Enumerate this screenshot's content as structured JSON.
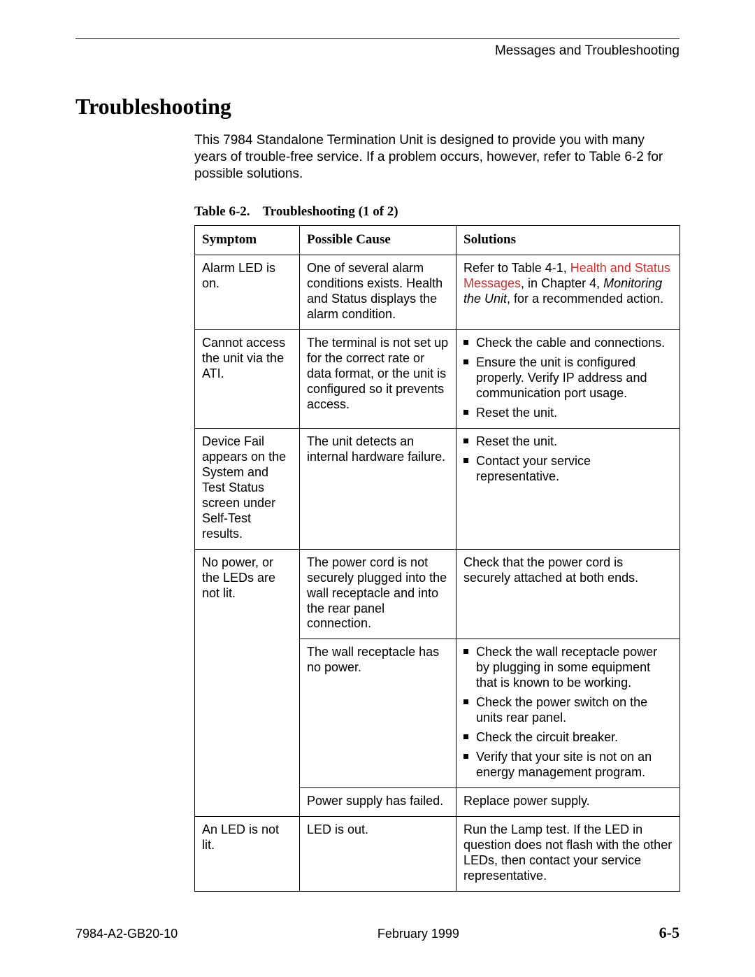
{
  "header": {
    "running_head": "Messages and Troubleshooting"
  },
  "title": "Troubleshooting",
  "intro": "This 7984 Standalone Termination Unit is designed to provide you with many years of trouble-free service. If a problem occurs, however, refer to Table 6-2 for possible solutions.",
  "table": {
    "caption_prefix": "Table 6-2.",
    "caption_title": "Troubleshooting (1 of 2)",
    "columns": [
      "Symptom",
      "Possible Cause",
      "Solutions"
    ],
    "rows": {
      "r1": {
        "symptom": "Alarm LED is on.",
        "cause": "One of several alarm conditions exists. Health and Status displays the alarm condition.",
        "sol_pre": "Refer to Table 4-1, ",
        "sol_link": "Health and Status Messages",
        "sol_mid": ", in Chapter 4, ",
        "sol_ital": "Monitoring the Unit",
        "sol_post": ", for a recommended action."
      },
      "r2": {
        "symptom": "Cannot access the unit via the ATI.",
        "cause": "The terminal is not set up for the correct rate or data format, or the unit is configured so it prevents access.",
        "sol": {
          "i1": "Check the cable and connections.",
          "i2": "Ensure the unit is configured properly. Verify IP address and communication port usage.",
          "i3": "Reset the unit."
        }
      },
      "r3": {
        "symptom": "Device Fail appears on the System and Test Status screen under Self-Test results.",
        "cause": "The unit detects an internal hardware failure.",
        "sol": {
          "i1": "Reset the unit.",
          "i2": "Contact your service representative."
        }
      },
      "r4": {
        "symptom": "No power, or the LEDs are not lit.",
        "cause": "The power cord is not securely plugged into the wall receptacle and into the rear panel connection.",
        "sol": "Check that the power cord is securely attached at both ends."
      },
      "r5": {
        "cause": "The wall receptacle has no power.",
        "sol": {
          "i1": "Check the wall receptacle power by plugging in some equipment that is known to be working.",
          "i2": "Check the power switch on the units rear panel.",
          "i3": "Check the circuit breaker.",
          "i4": "Verify that your site is not on an energy management program."
        }
      },
      "r6": {
        "cause": "Power supply has failed.",
        "sol": "Replace power supply."
      },
      "r7": {
        "symptom": "An LED is not lit.",
        "cause": "LED is out.",
        "sol": "Run the Lamp test. If the LED in question does not flash with the other LEDs, then contact your service representative."
      }
    }
  },
  "footer": {
    "doc_id": "7984-A2-GB20-10",
    "date": "February 1999",
    "page_number": "6-5"
  },
  "colors": {
    "link": "#cc3333",
    "text": "#000000",
    "background": "#ffffff"
  }
}
